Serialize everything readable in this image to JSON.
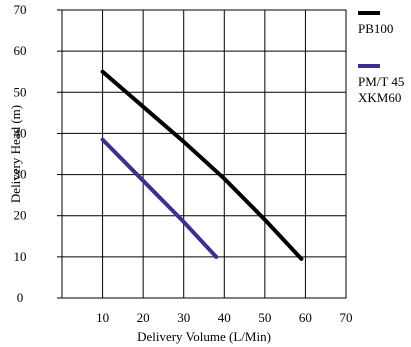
{
  "chart_data": {
    "type": "line",
    "title": "",
    "xlabel": "Delivery Volume (L/Min)",
    "ylabel": "Delivery Head (m)",
    "xlim": [
      0,
      70
    ],
    "ylim": [
      0,
      70
    ],
    "x_ticks": [
      "10",
      "20",
      "30",
      "40",
      "50",
      "60",
      "70"
    ],
    "y_ticks": [
      "0",
      "10",
      "20",
      "30",
      "40",
      "50",
      "60",
      "70"
    ],
    "grid": true,
    "legend_position": "right",
    "series": [
      {
        "name": "PB100",
        "color": "#000000",
        "x": [
          10,
          20,
          30,
          40,
          50,
          59
        ],
        "y": [
          55,
          46.5,
          38,
          29,
          19,
          9.5
        ]
      },
      {
        "name": "PM/T 45\nXKM60",
        "color": "#3b2f8f",
        "x": [
          10,
          20,
          30,
          38
        ],
        "y": [
          38.5,
          28.5,
          18.5,
          10
        ]
      }
    ]
  }
}
